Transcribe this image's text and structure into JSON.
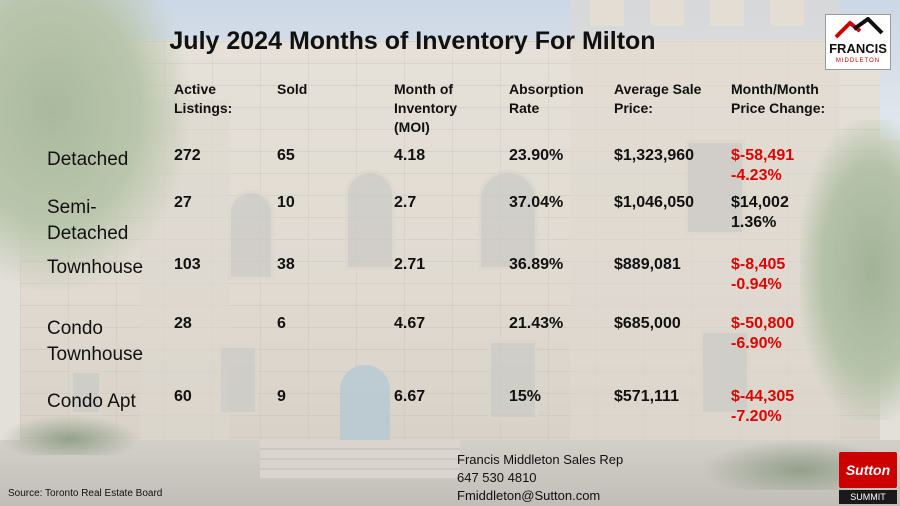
{
  "title": "July 2024 Months of Inventory For Milton",
  "headers": {
    "active": [
      "Active",
      "Listings:"
    ],
    "sold": [
      "Sold"
    ],
    "moi": [
      "Month of",
      "Inventory",
      "(MOI)"
    ],
    "absorption": [
      "Absorption",
      "Rate"
    ],
    "avg_price": [
      "Average Sale",
      "Price:"
    ],
    "change": [
      "Month/Month",
      "Price Change:"
    ]
  },
  "rows": [
    {
      "label": [
        "Detached"
      ],
      "active": "272",
      "sold": "65",
      "moi": "4.18",
      "absorption": "23.90%",
      "avg_price": "$1,323,960",
      "change_amount": "$-58,491",
      "change_pct": "-4.23%",
      "negative": true
    },
    {
      "label": [
        "Semi-",
        "Detached"
      ],
      "active": "27",
      "sold": "10",
      "moi": "2.7",
      "absorption": "37.04%",
      "avg_price": "$1,046,050",
      "change_amount": "$14,002",
      "change_pct": "1.36%",
      "negative": false
    },
    {
      "label": [
        "Townhouse"
      ],
      "active": "103",
      "sold": "38",
      "moi": "2.71",
      "absorption": "36.89%",
      "avg_price": "$889,081",
      "change_amount": "$-8,405",
      "change_pct": "-0.94%",
      "negative": true
    },
    {
      "label": [
        "Condo",
        "Townhouse"
      ],
      "active": "28",
      "sold": "6",
      "moi": "4.67",
      "absorption": "21.43%",
      "avg_price": "$685,000",
      "change_amount": "$-50,800",
      "change_pct": "-6.90%",
      "negative": true
    },
    {
      "label": [
        "Condo Apt"
      ],
      "active": "60",
      "sold": "9",
      "moi": "6.67",
      "absorption": "15%",
      "avg_price": "$571,111",
      "change_amount": "$-44,305",
      "change_pct": "-7.20%",
      "negative": true
    }
  ],
  "logo": {
    "name": "FRANCIS",
    "sub": "MIDDLETON",
    "icon": "house-roof-icon"
  },
  "contact": {
    "name": "Francis Middleton Sales Rep",
    "phone": "647 530 4810",
    "email": "Fmiddleton@Sutton.com"
  },
  "source": "Source: Toronto Real Estate Board",
  "brand": {
    "name": "Sutton",
    "sub": "SUMMIT"
  },
  "colors": {
    "negative": "#e00000",
    "brand_red": "#cc0000"
  }
}
